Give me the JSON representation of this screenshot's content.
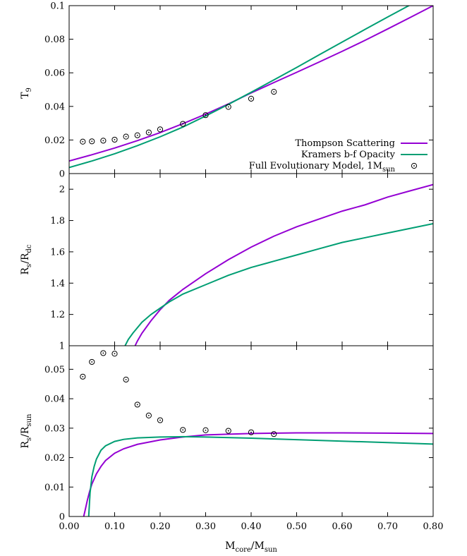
{
  "colors": {
    "thompson": "#9400d3",
    "kramers": "#009e73",
    "points": "#000000"
  },
  "x_axis": {
    "label_main": "M",
    "label_sub": "core",
    "label_mid": "/M",
    "label_sub2": "sun",
    "range": [
      0,
      0.8
    ],
    "ticks": [
      0,
      0.1,
      0.2,
      0.3,
      0.4,
      0.5,
      0.6,
      0.7,
      0.8
    ],
    "tick_labels": [
      "0.00",
      "0.10",
      "0.20",
      "0.30",
      "0.40",
      "0.50",
      "0.60",
      "0.70",
      "0.80"
    ]
  },
  "legend": {
    "placement": "bottom-right of top panel",
    "entries": [
      {
        "key": "thompson",
        "label": "Thompson Scattering",
        "sub": ""
      },
      {
        "key": "kramers",
        "label": "Kramers b-f Opacity",
        "sub": ""
      },
      {
        "key": "points",
        "label": "Full Evolutionary Model, 1M",
        "sub": "sun"
      }
    ]
  },
  "chart_data": [
    {
      "type": "line",
      "panel": "top",
      "ylabel_main": "T",
      "ylabel_sub": "9",
      "ylim": [
        0,
        0.1
      ],
      "yticks": [
        0,
        0.02,
        0.04,
        0.06,
        0.08,
        0.1
      ],
      "ytick_labels": [
        "0",
        "0.02",
        "0.04",
        "0.06",
        "0.08",
        "0.1"
      ],
      "series": [
        {
          "key": "thompson",
          "name": "Thompson Scattering",
          "style": "line",
          "x": [
            0,
            0.05,
            0.1,
            0.15,
            0.2,
            0.25,
            0.3,
            0.35,
            0.4,
            0.45,
            0.5,
            0.55,
            0.6,
            0.65,
            0.7,
            0.75,
            0.8
          ],
          "y": [
            0.0075,
            0.0112,
            0.0152,
            0.0196,
            0.0244,
            0.0297,
            0.0354,
            0.0415,
            0.048,
            0.0542,
            0.0603,
            0.0665,
            0.0728,
            0.0793,
            0.0861,
            0.093,
            0.1
          ]
        },
        {
          "key": "kramers",
          "name": "Kramers b-f Opacity",
          "style": "line",
          "x": [
            0,
            0.05,
            0.1,
            0.15,
            0.2,
            0.25,
            0.3,
            0.35,
            0.4,
            0.45,
            0.5,
            0.55,
            0.6,
            0.65,
            0.7,
            0.75
          ],
          "y": [
            0.0036,
            0.0075,
            0.0118,
            0.0166,
            0.0219,
            0.0277,
            0.0343,
            0.0412,
            0.0484,
            0.0558,
            0.0632,
            0.0708,
            0.0783,
            0.0858,
            0.0932,
            0.1005
          ]
        },
        {
          "key": "points",
          "name": "Full Evolutionary Model, 1Msun",
          "style": "points",
          "x": [
            0.03,
            0.05,
            0.075,
            0.1,
            0.125,
            0.15,
            0.175,
            0.2,
            0.25,
            0.3,
            0.35,
            0.4,
            0.45
          ],
          "y": [
            0.019,
            0.0192,
            0.0196,
            0.0202,
            0.022,
            0.0228,
            0.0245,
            0.0263,
            0.0296,
            0.0348,
            0.0397,
            0.0446,
            0.0487
          ]
        }
      ]
    },
    {
      "type": "line",
      "panel": "middle",
      "ylabel_main": "R",
      "ylabel_sub": "s",
      "ylabel_mid": "/R",
      "ylabel_sub2": "dc",
      "ylim": [
        1,
        2.1
      ],
      "yticks": [
        1,
        1.2,
        1.4,
        1.6,
        1.8,
        2
      ],
      "ytick_labels": [
        "1",
        "1.2",
        "1.4",
        "1.6",
        "1.8",
        "2"
      ],
      "series": [
        {
          "key": "thompson",
          "name": "Thompson Scattering",
          "style": "line",
          "x": [
            0.145,
            0.15,
            0.16,
            0.18,
            0.2,
            0.22,
            0.25,
            0.3,
            0.35,
            0.4,
            0.45,
            0.5,
            0.55,
            0.6,
            0.65,
            0.7,
            0.75,
            0.8
          ],
          "y": [
            1.0,
            1.03,
            1.08,
            1.16,
            1.23,
            1.29,
            1.36,
            1.46,
            1.55,
            1.63,
            1.7,
            1.76,
            1.81,
            1.86,
            1.9,
            1.95,
            1.99,
            2.03
          ]
        },
        {
          "key": "kramers",
          "name": "Kramers b-f Opacity",
          "style": "line",
          "x": [
            0.123,
            0.13,
            0.14,
            0.16,
            0.18,
            0.2,
            0.22,
            0.25,
            0.3,
            0.35,
            0.4,
            0.45,
            0.5,
            0.55,
            0.6,
            0.65,
            0.7,
            0.75,
            0.8
          ],
          "y": [
            1.0,
            1.04,
            1.08,
            1.15,
            1.2,
            1.24,
            1.28,
            1.33,
            1.39,
            1.45,
            1.5,
            1.54,
            1.58,
            1.62,
            1.66,
            1.69,
            1.72,
            1.75,
            1.78
          ]
        }
      ]
    },
    {
      "type": "line",
      "panel": "bottom",
      "ylabel_main": "R",
      "ylabel_sub": "s",
      "ylabel_mid": "/R",
      "ylabel_sub2": "sun",
      "ylim": [
        0,
        0.058
      ],
      "yticks": [
        0,
        0.01,
        0.02,
        0.03,
        0.04,
        0.05
      ],
      "ytick_labels": [
        "0",
        "0.01",
        "0.02",
        "0.03",
        "0.04",
        "0.05"
      ],
      "series": [
        {
          "key": "thompson",
          "name": "Thompson Scattering",
          "style": "line",
          "x": [
            0.032,
            0.035,
            0.04,
            0.045,
            0.05,
            0.06,
            0.07,
            0.08,
            0.1,
            0.12,
            0.15,
            0.2,
            0.25,
            0.3,
            0.4,
            0.5,
            0.6,
            0.7,
            0.8
          ],
          "y": [
            0.0,
            0.002,
            0.0055,
            0.0085,
            0.011,
            0.0145,
            0.017,
            0.019,
            0.0215,
            0.023,
            0.0245,
            0.026,
            0.027,
            0.0277,
            0.0282,
            0.0284,
            0.0284,
            0.0283,
            0.0282
          ]
        },
        {
          "key": "kramers",
          "name": "Kramers b-f Opacity",
          "style": "line",
          "x": [
            0.043,
            0.046,
            0.05,
            0.055,
            0.06,
            0.07,
            0.08,
            0.1,
            0.12,
            0.15,
            0.2,
            0.25,
            0.3,
            0.4,
            0.5,
            0.6,
            0.7,
            0.8
          ],
          "y": [
            0.0,
            0.008,
            0.0135,
            0.017,
            0.0195,
            0.0225,
            0.024,
            0.0255,
            0.0262,
            0.0267,
            0.027,
            0.0271,
            0.027,
            0.0266,
            0.0261,
            0.0256,
            0.0251,
            0.0246
          ]
        },
        {
          "key": "points",
          "name": "Full Evolutionary Model, 1Msun",
          "style": "points",
          "x": [
            0.03,
            0.05,
            0.075,
            0.1,
            0.125,
            0.15,
            0.175,
            0.2,
            0.25,
            0.3,
            0.35,
            0.4,
            0.45
          ],
          "y": [
            0.0475,
            0.0525,
            0.0555,
            0.0553,
            0.0465,
            0.038,
            0.0343,
            0.0327,
            0.0294,
            0.0293,
            0.0291,
            0.0286,
            0.028
          ]
        }
      ]
    }
  ]
}
